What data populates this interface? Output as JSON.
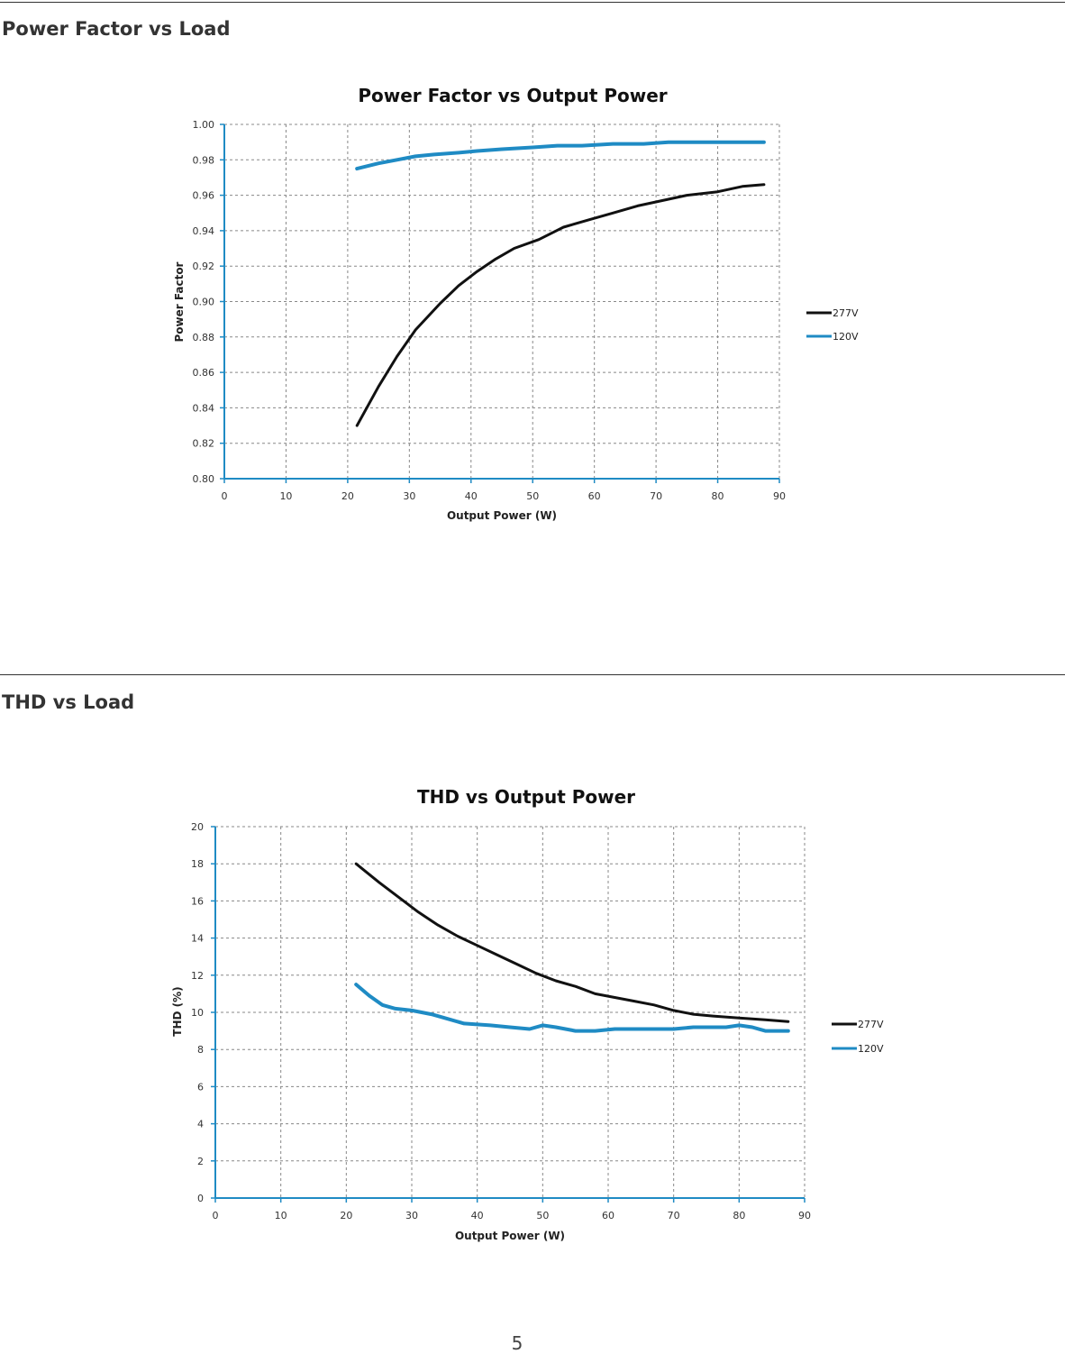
{
  "page": {
    "section1_title": "Power Factor vs Load",
    "section2_title": "THD vs Load",
    "page_number": "5"
  },
  "colors": {
    "277V": "#111111",
    "120V": "#1f8bc4",
    "axis": "#1f8bc4",
    "grid": "#888888"
  },
  "chart_data": [
    {
      "type": "line",
      "title": "Power Factor vs Output Power",
      "xlabel": "Output Power (W)",
      "ylabel": "Power Factor",
      "xlim": [
        0,
        90
      ],
      "ylim": [
        0.8,
        1.0
      ],
      "xticks": [
        "0",
        "10",
        "20",
        "30",
        "40",
        "50",
        "60",
        "70",
        "80",
        "90"
      ],
      "yticks": [
        "1.00",
        "0.98",
        "0.96",
        "0.94",
        "0.92",
        "0.90",
        "0.88",
        "0.86",
        "0.84",
        "0.82",
        "0.80"
      ],
      "grid": true,
      "legend_position": "right",
      "series": [
        {
          "name": "277V",
          "x": [
            21.5,
            25,
            28,
            31,
            35,
            38,
            41,
            44,
            47,
            51,
            55,
            59,
            63,
            67,
            71,
            75,
            80,
            84,
            87.5
          ],
          "y": [
            0.83,
            0.852,
            0.869,
            0.884,
            0.899,
            0.909,
            0.917,
            0.924,
            0.93,
            0.935,
            0.942,
            0.946,
            0.95,
            0.954,
            0.957,
            0.96,
            0.962,
            0.965,
            0.966
          ]
        },
        {
          "name": "120V",
          "x": [
            21.5,
            25,
            28,
            31,
            34,
            38,
            41,
            45,
            50,
            54,
            58,
            63,
            68,
            72,
            78,
            84,
            87.5
          ],
          "y": [
            0.975,
            0.978,
            0.98,
            0.982,
            0.983,
            0.984,
            0.985,
            0.986,
            0.987,
            0.988,
            0.988,
            0.989,
            0.989,
            0.99,
            0.99,
            0.99,
            0.99
          ]
        }
      ]
    },
    {
      "type": "line",
      "title": "THD vs Output Power",
      "xlabel": "Output Power (W)",
      "ylabel": "THD (%)",
      "xlim": [
        0,
        90
      ],
      "ylim": [
        0,
        20
      ],
      "xticks": [
        "0",
        "10",
        "20",
        "30",
        "40",
        "50",
        "60",
        "70",
        "80",
        "90"
      ],
      "yticks": [
        "20",
        "18",
        "16",
        "14",
        "12",
        "10",
        "8",
        "6",
        "4",
        "2",
        "0"
      ],
      "grid": true,
      "legend_position": "right",
      "series": [
        {
          "name": "277V",
          "x": [
            21.5,
            25,
            28,
            31,
            34,
            37,
            40,
            43,
            46,
            49,
            52,
            55,
            58,
            61,
            64,
            67,
            70,
            73,
            76,
            80,
            84,
            87.5
          ],
          "y": [
            18.0,
            17.0,
            16.2,
            15.4,
            14.7,
            14.1,
            13.6,
            13.1,
            12.6,
            12.1,
            11.7,
            11.4,
            11.0,
            10.8,
            10.6,
            10.4,
            10.1,
            9.9,
            9.8,
            9.7,
            9.6,
            9.5
          ]
        },
        {
          "name": "120V",
          "x": [
            21.5,
            23.5,
            25.5,
            27.5,
            30,
            33,
            35,
            38,
            42,
            45,
            48,
            50,
            52,
            55,
            58,
            61,
            64,
            67,
            70,
            73,
            76,
            78,
            80,
            82,
            84,
            87.5
          ],
          "y": [
            11.5,
            10.9,
            10.4,
            10.2,
            10.1,
            9.9,
            9.7,
            9.4,
            9.3,
            9.2,
            9.1,
            9.3,
            9.2,
            9.0,
            9.0,
            9.1,
            9.1,
            9.1,
            9.1,
            9.2,
            9.2,
            9.2,
            9.3,
            9.2,
            9.0,
            9.0
          ]
        }
      ]
    }
  ]
}
